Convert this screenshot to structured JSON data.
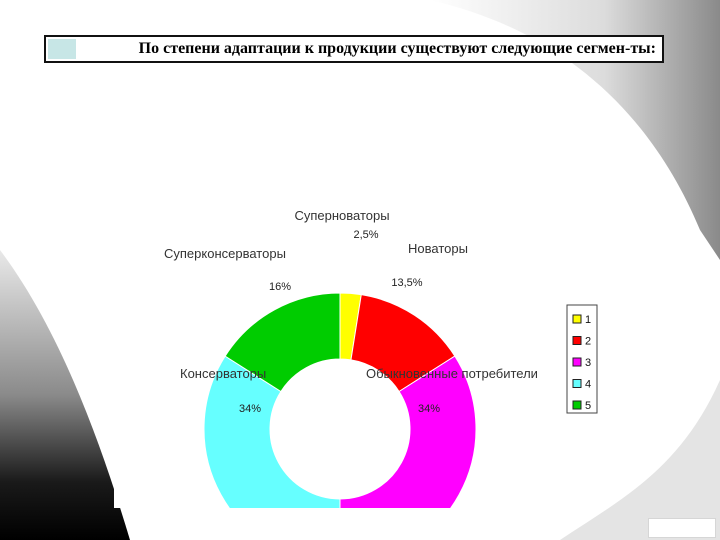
{
  "slide": {
    "title": "По степени адаптации к продукции существуют следующие сегмен-ты:"
  },
  "chart_data": {
    "type": "pie",
    "style": "donut",
    "categories": [
      "1",
      "2",
      "3",
      "4",
      "5"
    ],
    "slice_names": [
      "Суперноваторы",
      "Новаторы",
      "Обыкновенные потребители",
      "Консерваторы",
      "Суперконсерваторы"
    ],
    "values": [
      2.5,
      13.5,
      34,
      34,
      16
    ],
    "value_labels": [
      "2,5%",
      "13,5%",
      "34%",
      "34%",
      "16%"
    ],
    "colors": [
      "#ffff00",
      "#ff0000",
      "#ff00ff",
      "#66ffff",
      "#00cc00"
    ],
    "legend": {
      "placement": "right",
      "entries": [
        "1",
        "2",
        "3",
        "4",
        "5"
      ]
    }
  }
}
